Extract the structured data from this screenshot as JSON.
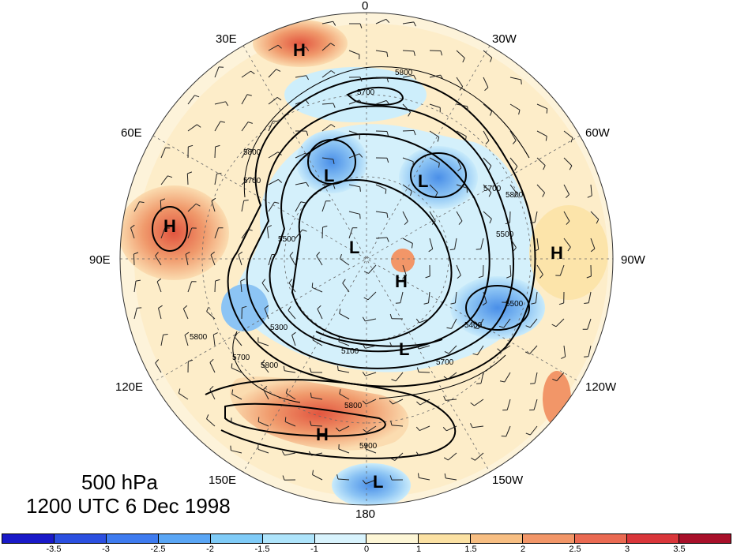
{
  "caption": {
    "level": "500 hPa",
    "time": "1200 UTC 6 Dec 1998"
  },
  "longitude_labels": [
    "0",
    "30W",
    "60W",
    "90W",
    "120W",
    "150W",
    "180",
    "150E",
    "120E",
    "90E",
    "60E",
    "30E"
  ],
  "contour_labels": [
    "5800",
    "5700",
    "5800",
    "5700",
    "5500",
    "5800",
    "5300",
    "5100",
    "5400",
    "5500",
    "5800",
    "5900",
    "5700",
    "5800",
    "5700",
    "5800",
    "5700",
    "5500"
  ],
  "pressure_centers": [
    {
      "type": "H",
      "color": "#000000"
    },
    {
      "type": "L",
      "color": "#000000"
    },
    {
      "type": "L",
      "color": "#000000"
    },
    {
      "type": "H",
      "color": "#000000"
    },
    {
      "type": "L",
      "color": "#000000"
    },
    {
      "type": "H",
      "color": "#000000"
    },
    {
      "type": "H",
      "color": "#000000"
    },
    {
      "type": "L",
      "color": "#000000"
    },
    {
      "type": "H",
      "color": "#000000"
    },
    {
      "type": "L",
      "color": "#000000"
    }
  ],
  "colorbar": {
    "colors": [
      "#1919c8",
      "#2b4fe0",
      "#3e7bef",
      "#5aa6f5",
      "#7fcbf7",
      "#aee4fb",
      "#d8f3fd",
      "#fdf6d6",
      "#fbe1a3",
      "#f7be82",
      "#f29668",
      "#ea6a52",
      "#d9363a",
      "#a8102a"
    ],
    "tick_labels": [
      "-3.5",
      "-3",
      "-2.5",
      "-2",
      "-1.5",
      "-1",
      "0",
      "1",
      "1.5",
      "2",
      "2.5",
      "3",
      "3.5"
    ]
  }
}
